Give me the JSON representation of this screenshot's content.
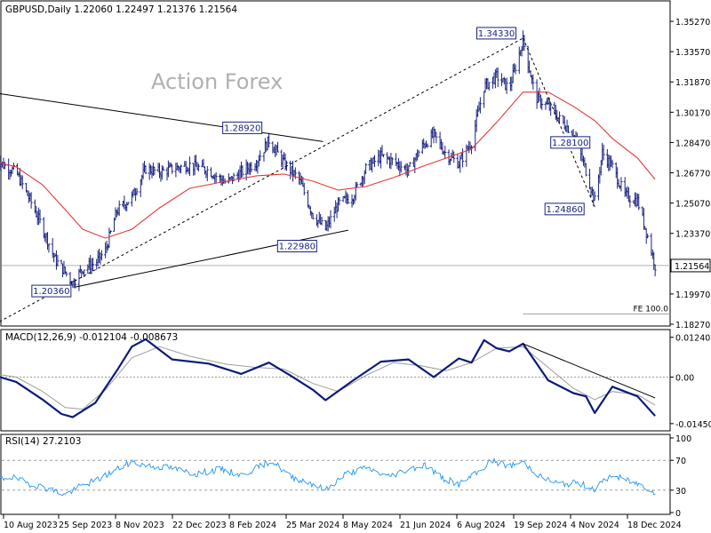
{
  "colors": {
    "price": "#1a237e",
    "ma": "#e53935",
    "macd": "#0d1b7a",
    "signal": "#9e9e9e",
    "rsi": "#2196f3",
    "grid_level": "#9e9e9e",
    "trendline": "#000000",
    "watermark": "#b0b0b0",
    "current_price_line": "#b0b0b0"
  },
  "chart_data": [
    {
      "type": "ohlc",
      "panel": "price",
      "header": "GBPUSD,Daily  1.22060 1.22497 1.21376 1.21564",
      "watermark": "Action Forex",
      "ylim": [
        1.1827,
        1.3627
      ],
      "y_ticks": [
        "1.35270",
        "1.33570",
        "1.31870",
        "1.30170",
        "1.28470",
        "1.26770",
        "1.25070",
        "1.23370",
        "1.21564",
        "1.19970",
        "1.18270"
      ],
      "current_price": 1.21564,
      "current_price_label": "1.21564",
      "x_ticks": [
        "10 Aug 2023",
        "25 Sep 2023",
        "8 Nov 2023",
        "22 Dec 2023",
        "8 Feb 2024",
        "25 Mar 2024",
        "8 May 2024",
        "21 Jun 2024",
        "6 Aug 2024",
        "19 Sep 2024",
        "4 Nov 2024",
        "18 Dec 2024"
      ],
      "pivots": [
        {
          "label": "1.20360",
          "date": "2023-10-04",
          "value": 1.2036
        },
        {
          "label": "1.28920",
          "date": "2024-03-08",
          "value": 1.2892
        },
        {
          "label": "1.22980",
          "date": "2024-04-22",
          "value": 1.2298
        },
        {
          "label": "1.34330",
          "date": "2024-09-26",
          "value": 1.3433
        },
        {
          "label": "1.28100",
          "date": "2024-11-28",
          "value": 1.281
        },
        {
          "label": "1.24860",
          "date": "2024-11-22",
          "value": 1.2486
        }
      ],
      "fe_label": "FE 100.0",
      "fe_level": 1.1885,
      "series": [
        {
          "name": "",
          "kind": "close",
          "x": [
            "2023-08-03",
            "2023-08-10",
            "2023-08-20",
            "2023-09-01",
            "2023-09-10",
            "2023-09-20",
            "2023-09-28",
            "2023-10-04",
            "2023-10-12",
            "2023-10-22",
            "2023-10-30",
            "2023-11-08",
            "2023-11-20",
            "2023-12-01",
            "2023-12-12",
            "2023-12-22",
            "2024-01-05",
            "2024-01-20",
            "2024-02-03",
            "2024-02-15",
            "2024-02-27",
            "2024-03-08",
            "2024-03-20",
            "2024-04-01",
            "2024-04-12",
            "2024-04-22",
            "2024-05-02",
            "2024-05-14",
            "2024-05-24",
            "2024-06-05",
            "2024-06-15",
            "2024-06-27",
            "2024-07-07",
            "2024-07-17",
            "2024-07-27",
            "2024-08-06",
            "2024-08-16",
            "2024-08-26",
            "2024-09-05",
            "2024-09-15",
            "2024-09-26",
            "2024-10-06",
            "2024-10-16",
            "2024-10-26",
            "2024-11-05",
            "2024-11-15",
            "2024-11-22",
            "2024-11-28",
            "2024-12-06",
            "2024-12-16",
            "2024-12-26",
            "2025-01-03",
            "2025-01-09"
          ],
          "y": [
            1.276,
            1.272,
            1.268,
            1.251,
            1.237,
            1.219,
            1.212,
            1.206,
            1.214,
            1.217,
            1.224,
            1.246,
            1.254,
            1.27,
            1.268,
            1.27,
            1.272,
            1.269,
            1.262,
            1.268,
            1.274,
            1.286,
            1.273,
            1.264,
            1.244,
            1.236,
            1.25,
            1.255,
            1.27,
            1.277,
            1.274,
            1.269,
            1.282,
            1.289,
            1.278,
            1.273,
            1.285,
            1.316,
            1.322,
            1.315,
            1.342,
            1.31,
            1.305,
            1.297,
            1.29,
            1.269,
            1.252,
            1.279,
            1.271,
            1.255,
            1.252,
            1.232,
            1.2156
          ]
        },
        {
          "name": "",
          "kind": "moving-average",
          "x": [
            "2023-08-03",
            "2023-08-20",
            "2023-09-10",
            "2023-09-28",
            "2023-10-12",
            "2023-10-30",
            "2023-11-20",
            "2023-12-12",
            "2024-01-05",
            "2024-02-03",
            "2024-02-27",
            "2024-03-20",
            "2024-04-12",
            "2024-05-02",
            "2024-05-24",
            "2024-06-15",
            "2024-07-07",
            "2024-07-27",
            "2024-08-16",
            "2024-09-05",
            "2024-09-26",
            "2024-10-16",
            "2024-11-05",
            "2024-11-22",
            "2024-12-06",
            "2024-12-26",
            "2025-01-09"
          ],
          "y": [
            1.274,
            1.271,
            1.261,
            1.247,
            1.236,
            1.231,
            1.236,
            1.248,
            1.259,
            1.263,
            1.266,
            1.267,
            1.263,
            1.258,
            1.26,
            1.265,
            1.271,
            1.276,
            1.281,
            1.296,
            1.313,
            1.313,
            1.305,
            1.297,
            1.287,
            1.276,
            1.264
          ]
        }
      ],
      "trendlines": [
        {
          "name": "upper-triangle",
          "x": [
            "2023-08-03",
            "2024-04-20"
          ],
          "y": [
            1.3125,
            1.2852
          ],
          "style": "solid"
        },
        {
          "name": "lower-triangle",
          "x": [
            "2023-10-06",
            "2024-05-10"
          ],
          "y": [
            1.2036,
            1.2355
          ],
          "style": "solid"
        },
        {
          "name": "rising-channel",
          "x": [
            "2023-08-03",
            "2024-09-26"
          ],
          "y": [
            1.1827,
            1.3433
          ],
          "style": "dashed"
        },
        {
          "name": "decline-swing",
          "x": [
            "2024-09-26",
            "2024-11-22"
          ],
          "y": [
            1.3433,
            1.2486
          ],
          "style": "dashed"
        }
      ]
    },
    {
      "type": "line",
      "panel": "macd",
      "header": "MACD(12,26,9) -0.012104 -0.008673",
      "ylim": [
        -0.0162,
        0.0137
      ],
      "y_ticks": [
        "0.012403",
        "0.00",
        "-0.014502"
      ],
      "series": [
        {
          "name": "",
          "kind": "macd",
          "x": [
            "2023-08-03",
            "2023-08-20",
            "2023-09-10",
            "2023-09-25",
            "2023-10-04",
            "2023-10-22",
            "2023-11-08",
            "2023-11-20",
            "2023-12-01",
            "2023-12-22",
            "2024-01-20",
            "2024-02-15",
            "2024-03-08",
            "2024-03-25",
            "2024-04-12",
            "2024-04-22",
            "2024-05-14",
            "2024-06-05",
            "2024-06-27",
            "2024-07-17",
            "2024-08-06",
            "2024-08-16",
            "2024-08-26",
            "2024-09-05",
            "2024-09-15",
            "2024-09-26",
            "2024-10-16",
            "2024-11-05",
            "2024-11-15",
            "2024-11-22",
            "2024-12-06",
            "2024-12-26",
            "2025-01-09"
          ],
          "y": [
            0.0005,
            -0.0015,
            -0.007,
            -0.0115,
            -0.0125,
            -0.008,
            0.002,
            0.0095,
            0.0118,
            0.0055,
            0.0042,
            0.001,
            0.0045,
            0.0005,
            -0.004,
            -0.0072,
            -0.001,
            0.0048,
            0.0055,
            0.0,
            0.0058,
            0.0045,
            0.0115,
            0.009,
            0.008,
            0.0104,
            -0.001,
            -0.005,
            -0.006,
            -0.0112,
            -0.003,
            -0.006,
            -0.0121
          ]
        },
        {
          "name": "",
          "kind": "signal",
          "x": [
            "2023-08-03",
            "2023-08-20",
            "2023-09-10",
            "2023-09-28",
            "2023-10-12",
            "2023-10-30",
            "2023-11-20",
            "2023-12-12",
            "2024-01-05",
            "2024-02-03",
            "2024-02-27",
            "2024-03-20",
            "2024-04-12",
            "2024-05-02",
            "2024-05-24",
            "2024-06-15",
            "2024-07-07",
            "2024-07-27",
            "2024-08-16",
            "2024-09-05",
            "2024-09-26",
            "2024-10-16",
            "2024-11-05",
            "2024-11-22",
            "2024-12-06",
            "2024-12-26",
            "2025-01-09"
          ],
          "y": [
            0.001,
            0.0,
            -0.0045,
            -0.0095,
            -0.01,
            -0.004,
            0.006,
            0.0095,
            0.0065,
            0.004,
            0.003,
            0.0025,
            -0.002,
            -0.0045,
            0.0005,
            0.0045,
            0.0035,
            0.002,
            0.0045,
            0.009,
            0.0095,
            0.003,
            -0.0035,
            -0.007,
            -0.0045,
            -0.0055,
            -0.0087
          ]
        }
      ],
      "trendlines": [
        {
          "name": "macd-resistance",
          "x": [
            "2024-09-26",
            "2025-01-09"
          ],
          "y": [
            0.0104,
            -0.0065
          ],
          "style": "solid"
        }
      ]
    },
    {
      "type": "line",
      "panel": "rsi",
      "header": "RSI(14) 27.2103",
      "ylim": [
        0,
        100
      ],
      "y_ticks": [
        "100",
        "70",
        "30",
        "0"
      ],
      "levels": [
        70,
        30
      ],
      "series": [
        {
          "name": "",
          "kind": "rsi",
          "x": [
            "2023-08-03",
            "2023-08-15",
            "2023-09-01",
            "2023-09-15",
            "2023-09-28",
            "2023-10-10",
            "2023-10-25",
            "2023-11-08",
            "2023-11-20",
            "2023-12-05",
            "2023-12-20",
            "2024-01-10",
            "2024-01-30",
            "2024-02-15",
            "2024-03-01",
            "2024-03-10",
            "2024-03-25",
            "2024-04-10",
            "2024-04-22",
            "2024-05-08",
            "2024-05-25",
            "2024-06-10",
            "2024-06-27",
            "2024-07-10",
            "2024-07-25",
            "2024-08-06",
            "2024-08-20",
            "2024-09-01",
            "2024-09-15",
            "2024-09-26",
            "2024-10-10",
            "2024-10-25",
            "2024-11-08",
            "2024-11-22",
            "2024-12-05",
            "2024-12-20",
            "2025-01-02",
            "2025-01-09"
          ],
          "y": [
            42,
            48,
            38,
            32,
            24,
            35,
            45,
            58,
            68,
            62,
            60,
            52,
            58,
            50,
            62,
            70,
            48,
            40,
            30,
            52,
            60,
            48,
            58,
            64,
            45,
            38,
            52,
            70,
            62,
            68,
            48,
            38,
            40,
            32,
            50,
            42,
            34,
            27
          ]
        }
      ]
    }
  ]
}
